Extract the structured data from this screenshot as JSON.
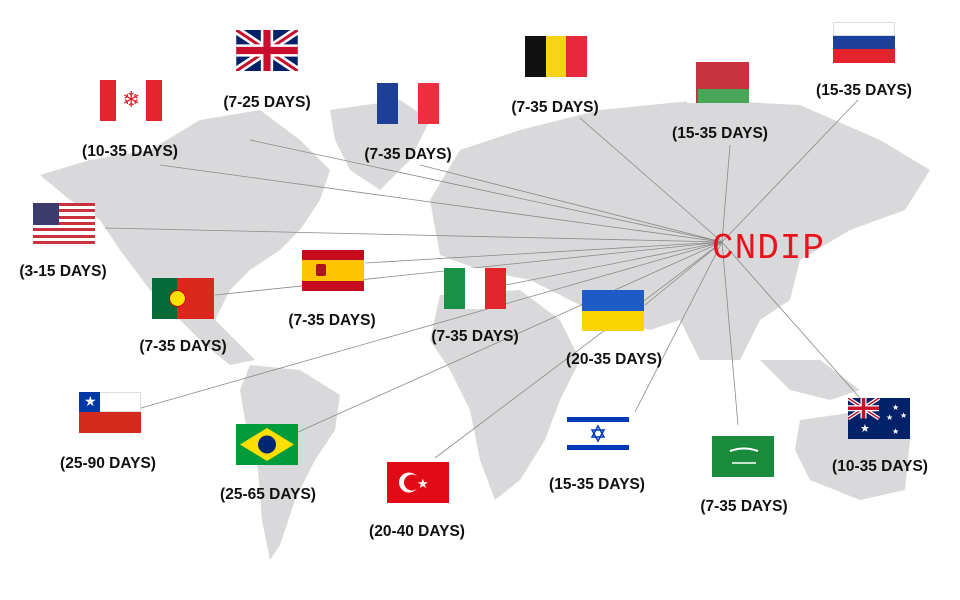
{
  "hub": {
    "label": "CNDIP",
    "color": "#e8141c"
  },
  "destinations": [
    {
      "country": "United Kingdom",
      "flag_icon": "uk-flag-icon",
      "days": "(7-25 DAYS)"
    },
    {
      "country": "Canada",
      "flag_icon": "canada-flag-icon",
      "days": "(10-35 DAYS)"
    },
    {
      "country": "France",
      "flag_icon": "france-flag-icon",
      "days": "(7-35 DAYS)"
    },
    {
      "country": "Belgium",
      "flag_icon": "belgium-flag-icon",
      "days": "(7-35 DAYS)"
    },
    {
      "country": "Belarus",
      "flag_icon": "belarus-flag-icon",
      "days": "(15-35 DAYS)"
    },
    {
      "country": "Russia",
      "flag_icon": "russia-flag-icon",
      "days": "(15-35 DAYS)"
    },
    {
      "country": "United States",
      "flag_icon": "usa-flag-icon",
      "days": "(3-15 DAYS)"
    },
    {
      "country": "Spain",
      "flag_icon": "spain-flag-icon",
      "days": "(7-35 DAYS)"
    },
    {
      "country": "Portugal",
      "flag_icon": "portugal-flag-icon",
      "days": "(7-35 DAYS)"
    },
    {
      "country": "Italy",
      "flag_icon": "italy-flag-icon",
      "days": "(7-35 DAYS)"
    },
    {
      "country": "Ukraine",
      "flag_icon": "ukraine-flag-icon",
      "days": "(20-35 DAYS)"
    },
    {
      "country": "Chile",
      "flag_icon": "chile-flag-icon",
      "days": "(25-90 DAYS)"
    },
    {
      "country": "Brazil",
      "flag_icon": "brazil-flag-icon",
      "days": "(25-65 DAYS)"
    },
    {
      "country": "Turkey",
      "flag_icon": "turkey-flag-icon",
      "days": "(20-40 DAYS)"
    },
    {
      "country": "Israel",
      "flag_icon": "israel-flag-icon",
      "days": "(15-35 DAYS)"
    },
    {
      "country": "Saudi Arabia",
      "flag_icon": "saudi-flag-icon",
      "days": "(7-35 DAYS)"
    },
    {
      "country": "Australia",
      "flag_icon": "australia-flag-icon",
      "days": "(10-35 DAYS)"
    }
  ]
}
